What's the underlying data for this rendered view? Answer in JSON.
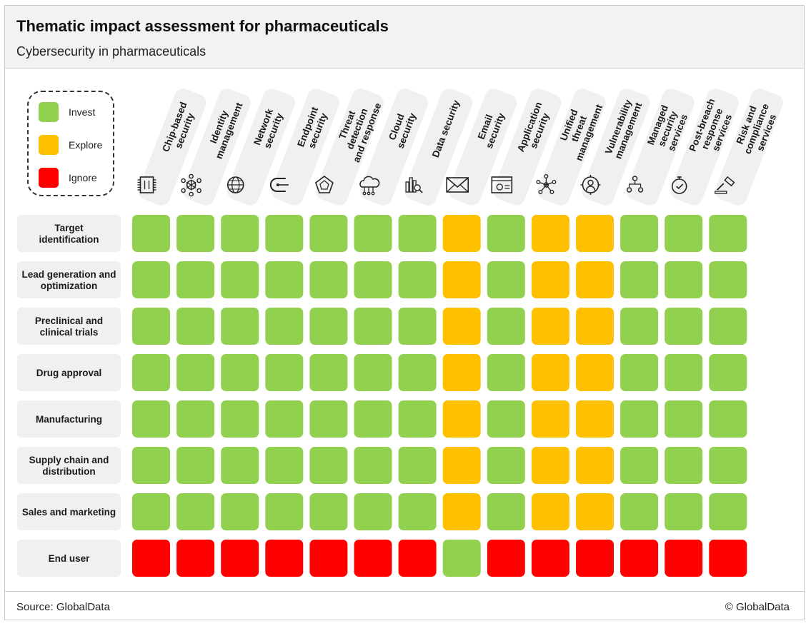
{
  "header": {
    "title": "Thematic impact assessment for pharmaceuticals",
    "subtitle": "Cybersecurity in pharmaceuticals"
  },
  "footer": {
    "source": "Source: GlobalData",
    "copyright": "© GlobalData"
  },
  "legend": {
    "items": [
      {
        "label": "Invest",
        "color": "#92D050"
      },
      {
        "label": "Explore",
        "color": "#FFC000"
      },
      {
        "label": "Ignore",
        "color": "#FF0000"
      }
    ]
  },
  "chart_data": {
    "type": "heatmap",
    "columns": [
      {
        "label": "Chip-based security",
        "icon": "chip-icon"
      },
      {
        "label": "Identity management",
        "icon": "identity-network-icon"
      },
      {
        "label": "Network security",
        "icon": "globe-network-icon"
      },
      {
        "label": "Endpoint security",
        "icon": "endpoint-icon"
      },
      {
        "label": "Threat detection and response",
        "icon": "threat-pentagon-icon"
      },
      {
        "label": "Cloud security",
        "icon": "cloud-circuit-icon"
      },
      {
        "label": "Data security",
        "icon": "data-analytics-icon"
      },
      {
        "label": "Email security",
        "icon": "envelope-icon"
      },
      {
        "label": "Application security",
        "icon": "application-window-icon"
      },
      {
        "label": "Unified threat management",
        "icon": "hub-network-icon"
      },
      {
        "label": "Vulnerability management",
        "icon": "target-person-icon"
      },
      {
        "label": "Managed security services",
        "icon": "team-hierarchy-icon"
      },
      {
        "label": "Post-breach response services",
        "icon": "stopwatch-icon"
      },
      {
        "label": "Risk and compliance services",
        "icon": "gavel-icon"
      }
    ],
    "rows": [
      {
        "label": "Target identification",
        "values": [
          "Invest",
          "Invest",
          "Invest",
          "Invest",
          "Invest",
          "Invest",
          "Invest",
          "Explore",
          "Invest",
          "Explore",
          "Explore",
          "Invest",
          "Invest",
          "Invest"
        ]
      },
      {
        "label": "Lead generation and optimization",
        "values": [
          "Invest",
          "Invest",
          "Invest",
          "Invest",
          "Invest",
          "Invest",
          "Invest",
          "Explore",
          "Invest",
          "Explore",
          "Explore",
          "Invest",
          "Invest",
          "Invest"
        ]
      },
      {
        "label": "Preclinical and clinical trials",
        "values": [
          "Invest",
          "Invest",
          "Invest",
          "Invest",
          "Invest",
          "Invest",
          "Invest",
          "Explore",
          "Invest",
          "Explore",
          "Explore",
          "Invest",
          "Invest",
          "Invest"
        ]
      },
      {
        "label": "Drug approval",
        "values": [
          "Invest",
          "Invest",
          "Invest",
          "Invest",
          "Invest",
          "Invest",
          "Invest",
          "Explore",
          "Invest",
          "Explore",
          "Explore",
          "Invest",
          "Invest",
          "Invest"
        ]
      },
      {
        "label": "Manufacturing",
        "values": [
          "Invest",
          "Invest",
          "Invest",
          "Invest",
          "Invest",
          "Invest",
          "Invest",
          "Explore",
          "Invest",
          "Explore",
          "Explore",
          "Invest",
          "Invest",
          "Invest"
        ]
      },
      {
        "label": "Supply chain and distribution",
        "values": [
          "Invest",
          "Invest",
          "Invest",
          "Invest",
          "Invest",
          "Invest",
          "Invest",
          "Explore",
          "Invest",
          "Explore",
          "Explore",
          "Invest",
          "Invest",
          "Invest"
        ]
      },
      {
        "label": "Sales and marketing",
        "values": [
          "Invest",
          "Invest",
          "Invest",
          "Invest",
          "Invest",
          "Invest",
          "Invest",
          "Explore",
          "Invest",
          "Explore",
          "Explore",
          "Invest",
          "Invest",
          "Invest"
        ]
      },
      {
        "label": "End user",
        "values": [
          "Ignore",
          "Ignore",
          "Ignore",
          "Ignore",
          "Ignore",
          "Ignore",
          "Ignore",
          "Invest",
          "Ignore",
          "Ignore",
          "Ignore",
          "Ignore",
          "Ignore",
          "Ignore"
        ]
      }
    ],
    "colors": {
      "Invest": "#92D050",
      "Explore": "#FFC000",
      "Ignore": "#FF0000"
    }
  }
}
